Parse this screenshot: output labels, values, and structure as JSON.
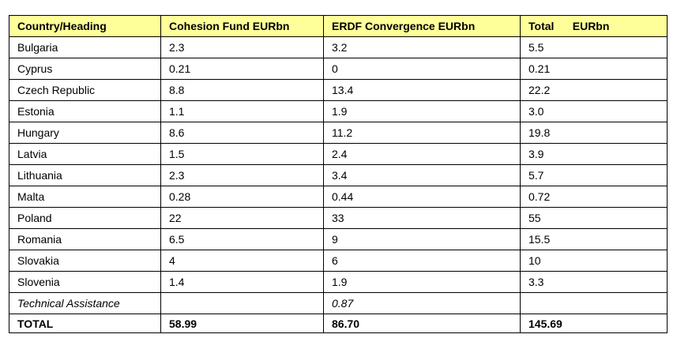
{
  "table": {
    "header": {
      "country": "Country/Heading",
      "cohesion": "Cohesion Fund EURbn",
      "erdf": "ERDF Convergence EURbn",
      "total": "Total      EURbn"
    },
    "header_bg": "#ffff99",
    "rows": [
      {
        "country": "Bulgaria",
        "cohesion": "2.3",
        "erdf": "3.2",
        "total": "5.5"
      },
      {
        "country": "Cyprus",
        "cohesion": "0.21",
        "erdf": "0",
        "total": "0.21"
      },
      {
        "country": "Czech Republic",
        "cohesion": "8.8",
        "erdf": "13.4",
        "total": "22.2"
      },
      {
        "country": "Estonia",
        "cohesion": "1.1",
        "erdf": "1.9",
        "total": "3.0"
      },
      {
        "country": "Hungary",
        "cohesion": "8.6",
        "erdf": "11.2",
        "total": "19.8"
      },
      {
        "country": "Latvia",
        "cohesion": "1.5",
        "erdf": "2.4",
        "total": "3.9"
      },
      {
        "country": "Lithuania",
        "cohesion": "2.3",
        "erdf": "3.4",
        "total": "5.7"
      },
      {
        "country": "Malta",
        "cohesion": "0.28",
        "erdf": "0.44",
        "total": "0.72"
      },
      {
        "country": "Poland",
        "cohesion": "22",
        "erdf": "33",
        "total": "55"
      },
      {
        "country": "Romania",
        "cohesion": "6.5",
        "erdf": "9",
        "total": "15.5"
      },
      {
        "country": "Slovakia",
        "cohesion": "4",
        "erdf": "6",
        "total": "10"
      },
      {
        "country": "Slovenia",
        "cohesion": "1.4",
        "erdf": "1.9",
        "total": "3.3"
      },
      {
        "country": "Technical Assistance",
        "cohesion": "",
        "erdf": "0.87",
        "total": ""
      }
    ],
    "footer": {
      "country": "TOTAL",
      "cohesion": "58.99",
      "erdf": "86.70",
      "total": "145.69"
    }
  }
}
